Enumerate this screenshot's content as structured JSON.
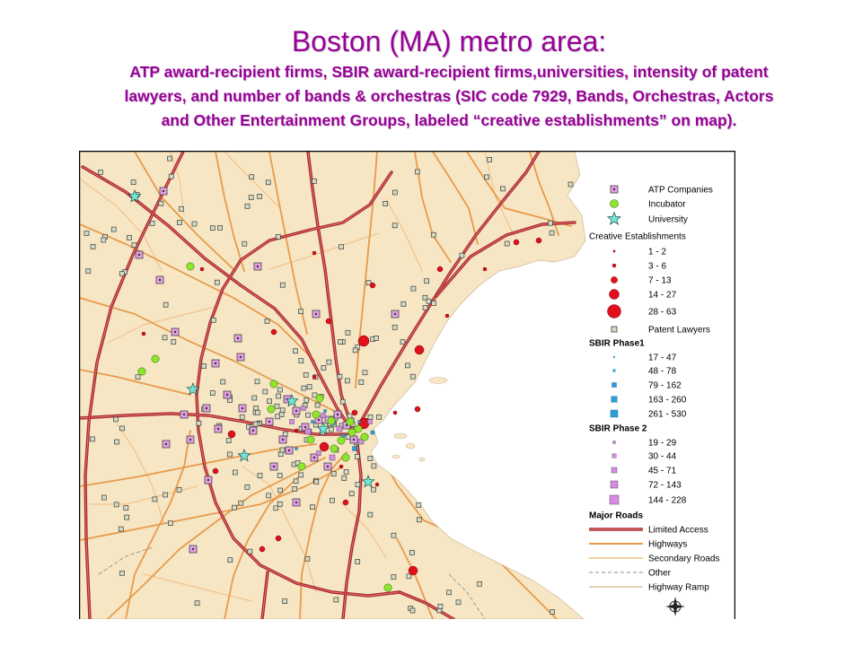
{
  "slide": {
    "title": "Boston (MA) metro area:",
    "subtitle_lines": [
      "ATP award-recipient firms, SBIR award-recipient firms,universities, intensity of patent",
      "lawyers, and number of bands & orchestras (SIC code 7929, Bands, Orchestras, Actors",
      "and Other Entertainment Groups, labeled “creative establishments” on map)."
    ]
  },
  "map": {
    "legend": {
      "atp_companies": "ATP Companies",
      "incubator": "Incubator",
      "university": "University",
      "creative_establishments": {
        "header": "Creative Establishments",
        "ranges": [
          "1 - 2",
          "3 - 6",
          "7 - 13",
          "14 - 27",
          "28 - 63"
        ]
      },
      "patent_lawyers": "Patent Lawyers",
      "sbir_phase1": {
        "header": "SBIR Phase1",
        "ranges": [
          "17 - 47",
          "48 - 78",
          "79 - 162",
          "163 - 260",
          "261 - 530"
        ]
      },
      "sbir_phase2": {
        "header": "SBIR Phase 2",
        "ranges": [
          "19 - 29",
          "30 - 44",
          "45 - 71",
          "72 - 143",
          "144 - 228"
        ]
      },
      "major_roads": {
        "header": "Major Roads",
        "items": [
          "Limited Access",
          "Highways",
          "Secondary Roads",
          "Other",
          "Highway Ramp"
        ]
      }
    },
    "icons": {
      "atp_company": "square-dot-icon",
      "incubator": "circle-icon",
      "university": "star-icon",
      "creative_establishment": "circle-icon",
      "patent_lawyer": "square-icon",
      "compass": "compass-rose-icon"
    }
  },
  "colors": {
    "title_text": "#990099",
    "land": "#f6e6c4",
    "coast": "#cdb995",
    "water": "#ffffff",
    "atp_company": "#e6a0e6",
    "incubator": "#8ee62c",
    "university": "#72e6d6",
    "creative_establishment": "#e0101c",
    "patent_lawyer": "#d4dcc4",
    "sbir_phase1": "#2f9ed8",
    "sbir_phase2": "#d88ae6",
    "limited_access": "#a8282e",
    "limited_access_inner": "#e87a7a",
    "highway": "#e89a4a",
    "secondary_road": "#f2bc80",
    "other_road": "#8c8c8c",
    "highway_ramp": "#c8a070"
  }
}
